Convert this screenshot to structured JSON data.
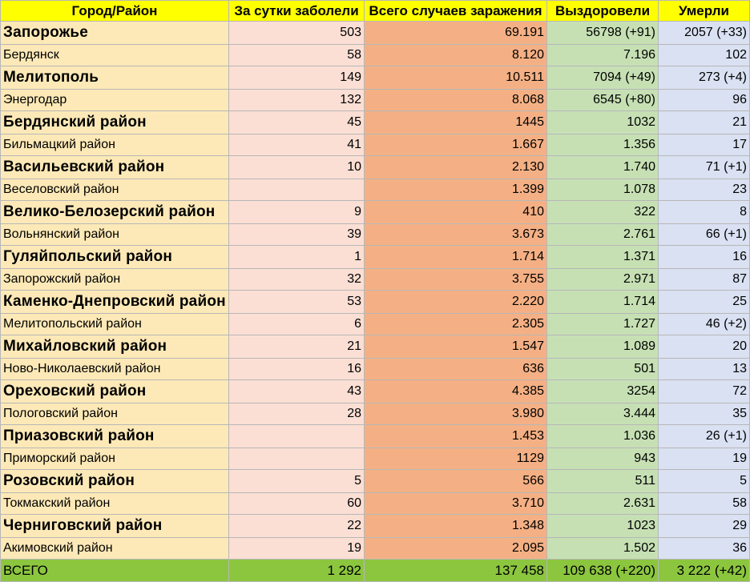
{
  "headers": {
    "city": "Город/Район",
    "daily": "За сутки заболели",
    "total": "Всего случаев заражения",
    "recovered": "Выздоровели",
    "died": "Умерли"
  },
  "rows": [
    {
      "name": "Запорожье",
      "daily": "503",
      "total": "69.191",
      "recovered": "56798 (+91)",
      "died": "2057 (+33)"
    },
    {
      "name": "Бердянск",
      "daily": "58",
      "total": "8.120",
      "recovered": "7.196",
      "died": "102"
    },
    {
      "name": "Мелитополь",
      "daily": "149",
      "total": "10.511",
      "recovered": "7094 (+49)",
      "died": "273 (+4)"
    },
    {
      "name": "Энергодар",
      "daily": "132",
      "total": "8.068",
      "recovered": "6545 (+80)",
      "died": "96"
    },
    {
      "name": "Бердянский район",
      "daily": "45",
      "total": "1445",
      "recovered": "1032",
      "died": "21"
    },
    {
      "name": "Бильмацкий район",
      "daily": "41",
      "total": "1.667",
      "recovered": "1.356",
      "died": "17"
    },
    {
      "name": "Васильевский район",
      "daily": "10",
      "total": "2.130",
      "recovered": "1.740",
      "died": "71 (+1)"
    },
    {
      "name": "Веселовский район",
      "daily": "",
      "total": "1.399",
      "recovered": "1.078",
      "died": "23"
    },
    {
      "name": "Велико-Белозерский район",
      "daily": "9",
      "total": "410",
      "recovered": "322",
      "died": "8"
    },
    {
      "name": "Вольнянский район",
      "daily": "39",
      "total": "3.673",
      "recovered": "2.761",
      "died": "66 (+1)"
    },
    {
      "name": "Гуляйпольский район",
      "daily": "1",
      "total": "1.714",
      "recovered": "1.371",
      "died": "16"
    },
    {
      "name": "Запорожский район",
      "daily": "32",
      "total": "3.755",
      "recovered": "2.971",
      "died": "87"
    },
    {
      "name": "Каменко-Днепровский район",
      "daily": "53",
      "total": "2.220",
      "recovered": "1.714",
      "died": "25"
    },
    {
      "name": "Мелитопольский район",
      "daily": "6",
      "total": "2.305",
      "recovered": "1.727",
      "died": "46 (+2)"
    },
    {
      "name": "Михайловский район",
      "daily": "21",
      "total": "1.547",
      "recovered": "1.089",
      "died": "20"
    },
    {
      "name": "Ново-Николаевский район",
      "daily": "16",
      "total": "636",
      "recovered": "501",
      "died": "13"
    },
    {
      "name": "Ореховский район",
      "daily": "43",
      "total": "4.385",
      "recovered": "3254",
      "died": "72"
    },
    {
      "name": "Пологовский район",
      "daily": "28",
      "total": "3.980",
      "recovered": "3.444",
      "died": "35"
    },
    {
      "name": "Приазовский район",
      "daily": "",
      "total": "1.453",
      "recovered": "1.036",
      "died": "26 (+1)"
    },
    {
      "name": "Приморский район",
      "daily": "",
      "total": "1129",
      "recovered": "943",
      "died": "19"
    },
    {
      "name": "Розовский район",
      "daily": "5",
      "total": "566",
      "recovered": "511",
      "died": "5"
    },
    {
      "name": "Токмакский район",
      "daily": "60",
      "total": "3.710",
      "recovered": "2.631",
      "died": "58"
    },
    {
      "name": "Черниговский район",
      "daily": "22",
      "total": "1.348",
      "recovered": "1023",
      "died": "29"
    },
    {
      "name": "Акимовский район",
      "daily": "19",
      "total": "2.095",
      "recovered": "1.502",
      "died": "36"
    }
  ],
  "totals": {
    "name": "ВСЕГО",
    "daily": "1 292",
    "total": "137 458",
    "recovered": "109 638 (+220)",
    "died": "3 222 (+42)"
  }
}
